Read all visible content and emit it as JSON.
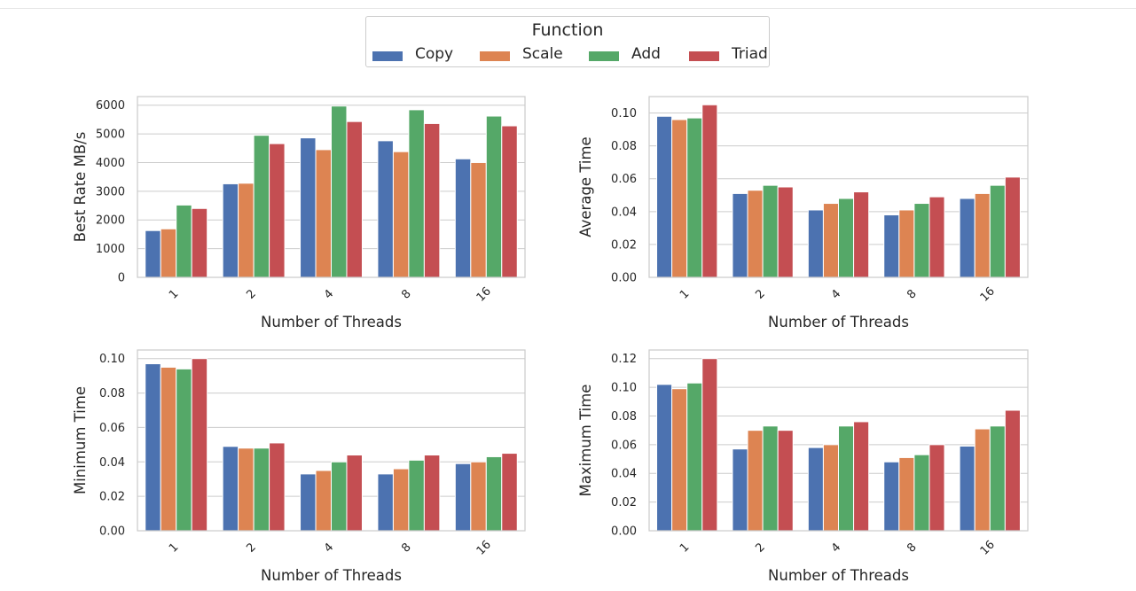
{
  "legend": {
    "title": "Function",
    "entries": [
      {
        "name": "Copy",
        "color": "#4c72b0"
      },
      {
        "name": "Scale",
        "color": "#dd8452"
      },
      {
        "name": "Add",
        "color": "#55a868"
      },
      {
        "name": "Triad",
        "color": "#c44e52"
      }
    ]
  },
  "chart_data": [
    {
      "type": "bar",
      "categories": [
        "1",
        "2",
        "4",
        "8",
        "16"
      ],
      "xlabel": "Number of Threads",
      "ylabel": "Best Rate MB/s",
      "ylim": [
        0,
        6300
      ],
      "yticks": [
        0,
        1000,
        2000,
        3000,
        4000,
        5000,
        6000
      ],
      "ytick_labels": [
        "0",
        "1000",
        "2000",
        "3000",
        "4000",
        "5000",
        "6000"
      ],
      "series": [
        {
          "name": "Copy",
          "values": [
            1630,
            3260,
            4860,
            4760,
            4130
          ]
        },
        {
          "name": "Scale",
          "values": [
            1690,
            3280,
            4450,
            4380,
            4000
          ]
        },
        {
          "name": "Add",
          "values": [
            2520,
            4950,
            5970,
            5840,
            5620
          ]
        },
        {
          "name": "Triad",
          "values": [
            2400,
            4660,
            5430,
            5360,
            5280
          ]
        }
      ],
      "grid": true
    },
    {
      "type": "bar",
      "categories": [
        "1",
        "2",
        "4",
        "8",
        "16"
      ],
      "xlabel": "Number of Threads",
      "ylabel": "Average Time",
      "ylim": [
        0,
        0.11
      ],
      "yticks": [
        0,
        0.02,
        0.04,
        0.06,
        0.08,
        0.1
      ],
      "ytick_labels": [
        "0.00",
        "0.02",
        "0.04",
        "0.06",
        "0.08",
        "0.10"
      ],
      "series": [
        {
          "name": "Copy",
          "values": [
            0.098,
            0.051,
            0.041,
            0.038,
            0.048
          ]
        },
        {
          "name": "Scale",
          "values": [
            0.096,
            0.053,
            0.045,
            0.041,
            0.051
          ]
        },
        {
          "name": "Add",
          "values": [
            0.097,
            0.056,
            0.048,
            0.045,
            0.056
          ]
        },
        {
          "name": "Triad",
          "values": [
            0.105,
            0.055,
            0.052,
            0.049,
            0.061
          ]
        }
      ],
      "grid": true
    },
    {
      "type": "bar",
      "categories": [
        "1",
        "2",
        "4",
        "8",
        "16"
      ],
      "xlabel": "Number of Threads",
      "ylabel": "Minimum Time",
      "ylim": [
        0,
        0.105
      ],
      "yticks": [
        0,
        0.02,
        0.04,
        0.06,
        0.08,
        0.1
      ],
      "ytick_labels": [
        "0.00",
        "0.02",
        "0.04",
        "0.06",
        "0.08",
        "0.10"
      ],
      "series": [
        {
          "name": "Copy",
          "values": [
            0.097,
            0.049,
            0.033,
            0.033,
            0.039
          ]
        },
        {
          "name": "Scale",
          "values": [
            0.095,
            0.048,
            0.035,
            0.036,
            0.04
          ]
        },
        {
          "name": "Add",
          "values": [
            0.094,
            0.048,
            0.04,
            0.041,
            0.043
          ]
        },
        {
          "name": "Triad",
          "values": [
            0.1,
            0.051,
            0.044,
            0.044,
            0.045
          ]
        }
      ],
      "grid": true
    },
    {
      "type": "bar",
      "categories": [
        "1",
        "2",
        "4",
        "8",
        "16"
      ],
      "xlabel": "Number of Threads",
      "ylabel": "Maximum Time",
      "ylim": [
        0,
        0.126
      ],
      "yticks": [
        0,
        0.02,
        0.04,
        0.06,
        0.08,
        0.1,
        0.12
      ],
      "ytick_labels": [
        "0.00",
        "0.02",
        "0.04",
        "0.06",
        "0.08",
        "0.10",
        "0.12"
      ],
      "series": [
        {
          "name": "Copy",
          "values": [
            0.102,
            0.057,
            0.058,
            0.048,
            0.059
          ]
        },
        {
          "name": "Scale",
          "values": [
            0.099,
            0.07,
            0.06,
            0.051,
            0.071
          ]
        },
        {
          "name": "Add",
          "values": [
            0.103,
            0.073,
            0.073,
            0.053,
            0.073
          ]
        },
        {
          "name": "Triad",
          "values": [
            0.12,
            0.07,
            0.076,
            0.06,
            0.084
          ]
        }
      ],
      "grid": true
    }
  ]
}
